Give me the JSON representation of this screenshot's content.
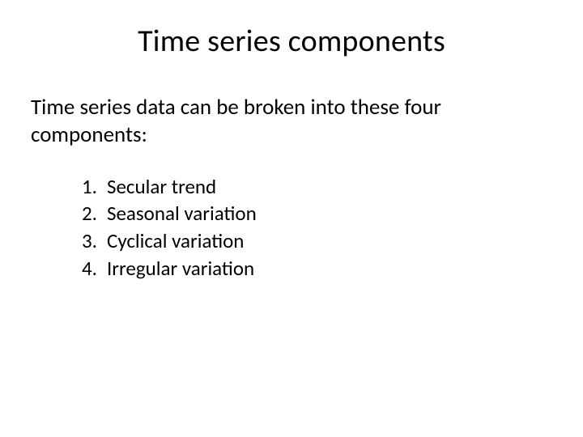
{
  "title": "Time series components",
  "intro": "Time series data can be broken into these four components:",
  "items": [
    {
      "num": "1.",
      "text": "Secular trend"
    },
    {
      "num": "2.",
      "text": "Seasonal variation"
    },
    {
      "num": "3.",
      "text": "Cyclical variation"
    },
    {
      "num": "4.",
      "text": "Irregular variation"
    }
  ],
  "colors": {
    "background": "#ffffff",
    "text": "#000000"
  },
  "typography": {
    "font_family": "Calibri",
    "title_fontsize": 38,
    "intro_fontsize": 27,
    "item_fontsize": 25
  }
}
